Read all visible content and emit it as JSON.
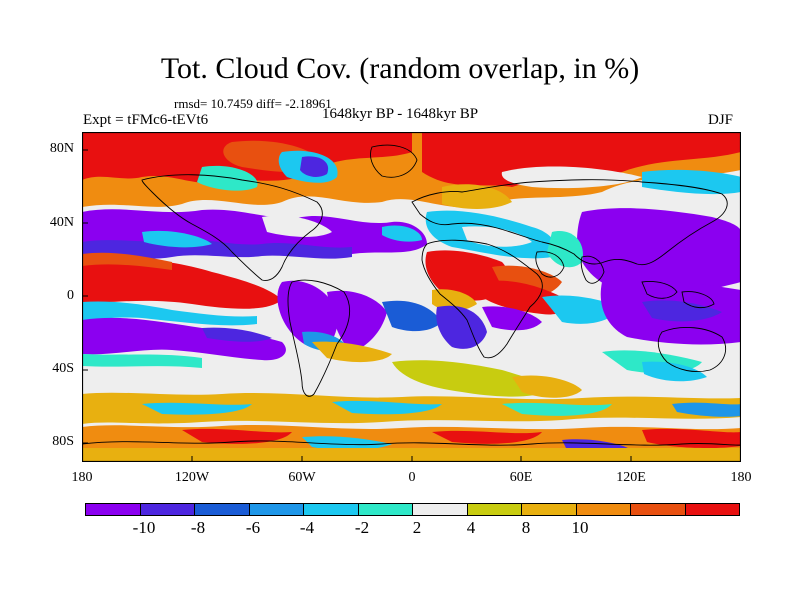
{
  "title": "Tot. Cloud Cov. (random overlap, in %)",
  "stats": "rmsd= 10.7459 diff= -2.18961",
  "experiment": "Expt = tFMc6-tEVt6",
  "period": "1648kyr BP - 1648kyr BP",
  "season": "DJF",
  "lat_labels": [
    "80N",
    "40N",
    "0",
    "40S",
    "80S"
  ],
  "lon_labels": [
    "180",
    "120W",
    "60W",
    "0",
    "60E",
    "120E",
    "180"
  ],
  "colorbar": {
    "colors": [
      "#8b00f0",
      "#4d26e0",
      "#1a5cd6",
      "#1e96e8",
      "#1cc8f0",
      "#2ee8c8",
      "#eeeeee",
      "#c8cc10",
      "#e8b010",
      "#f08c10",
      "#e85010",
      "#e81010"
    ],
    "labels": [
      "-10",
      "-8",
      "-6",
      "-4",
      "-2",
      "2",
      "4",
      "8",
      "10"
    ]
  }
}
